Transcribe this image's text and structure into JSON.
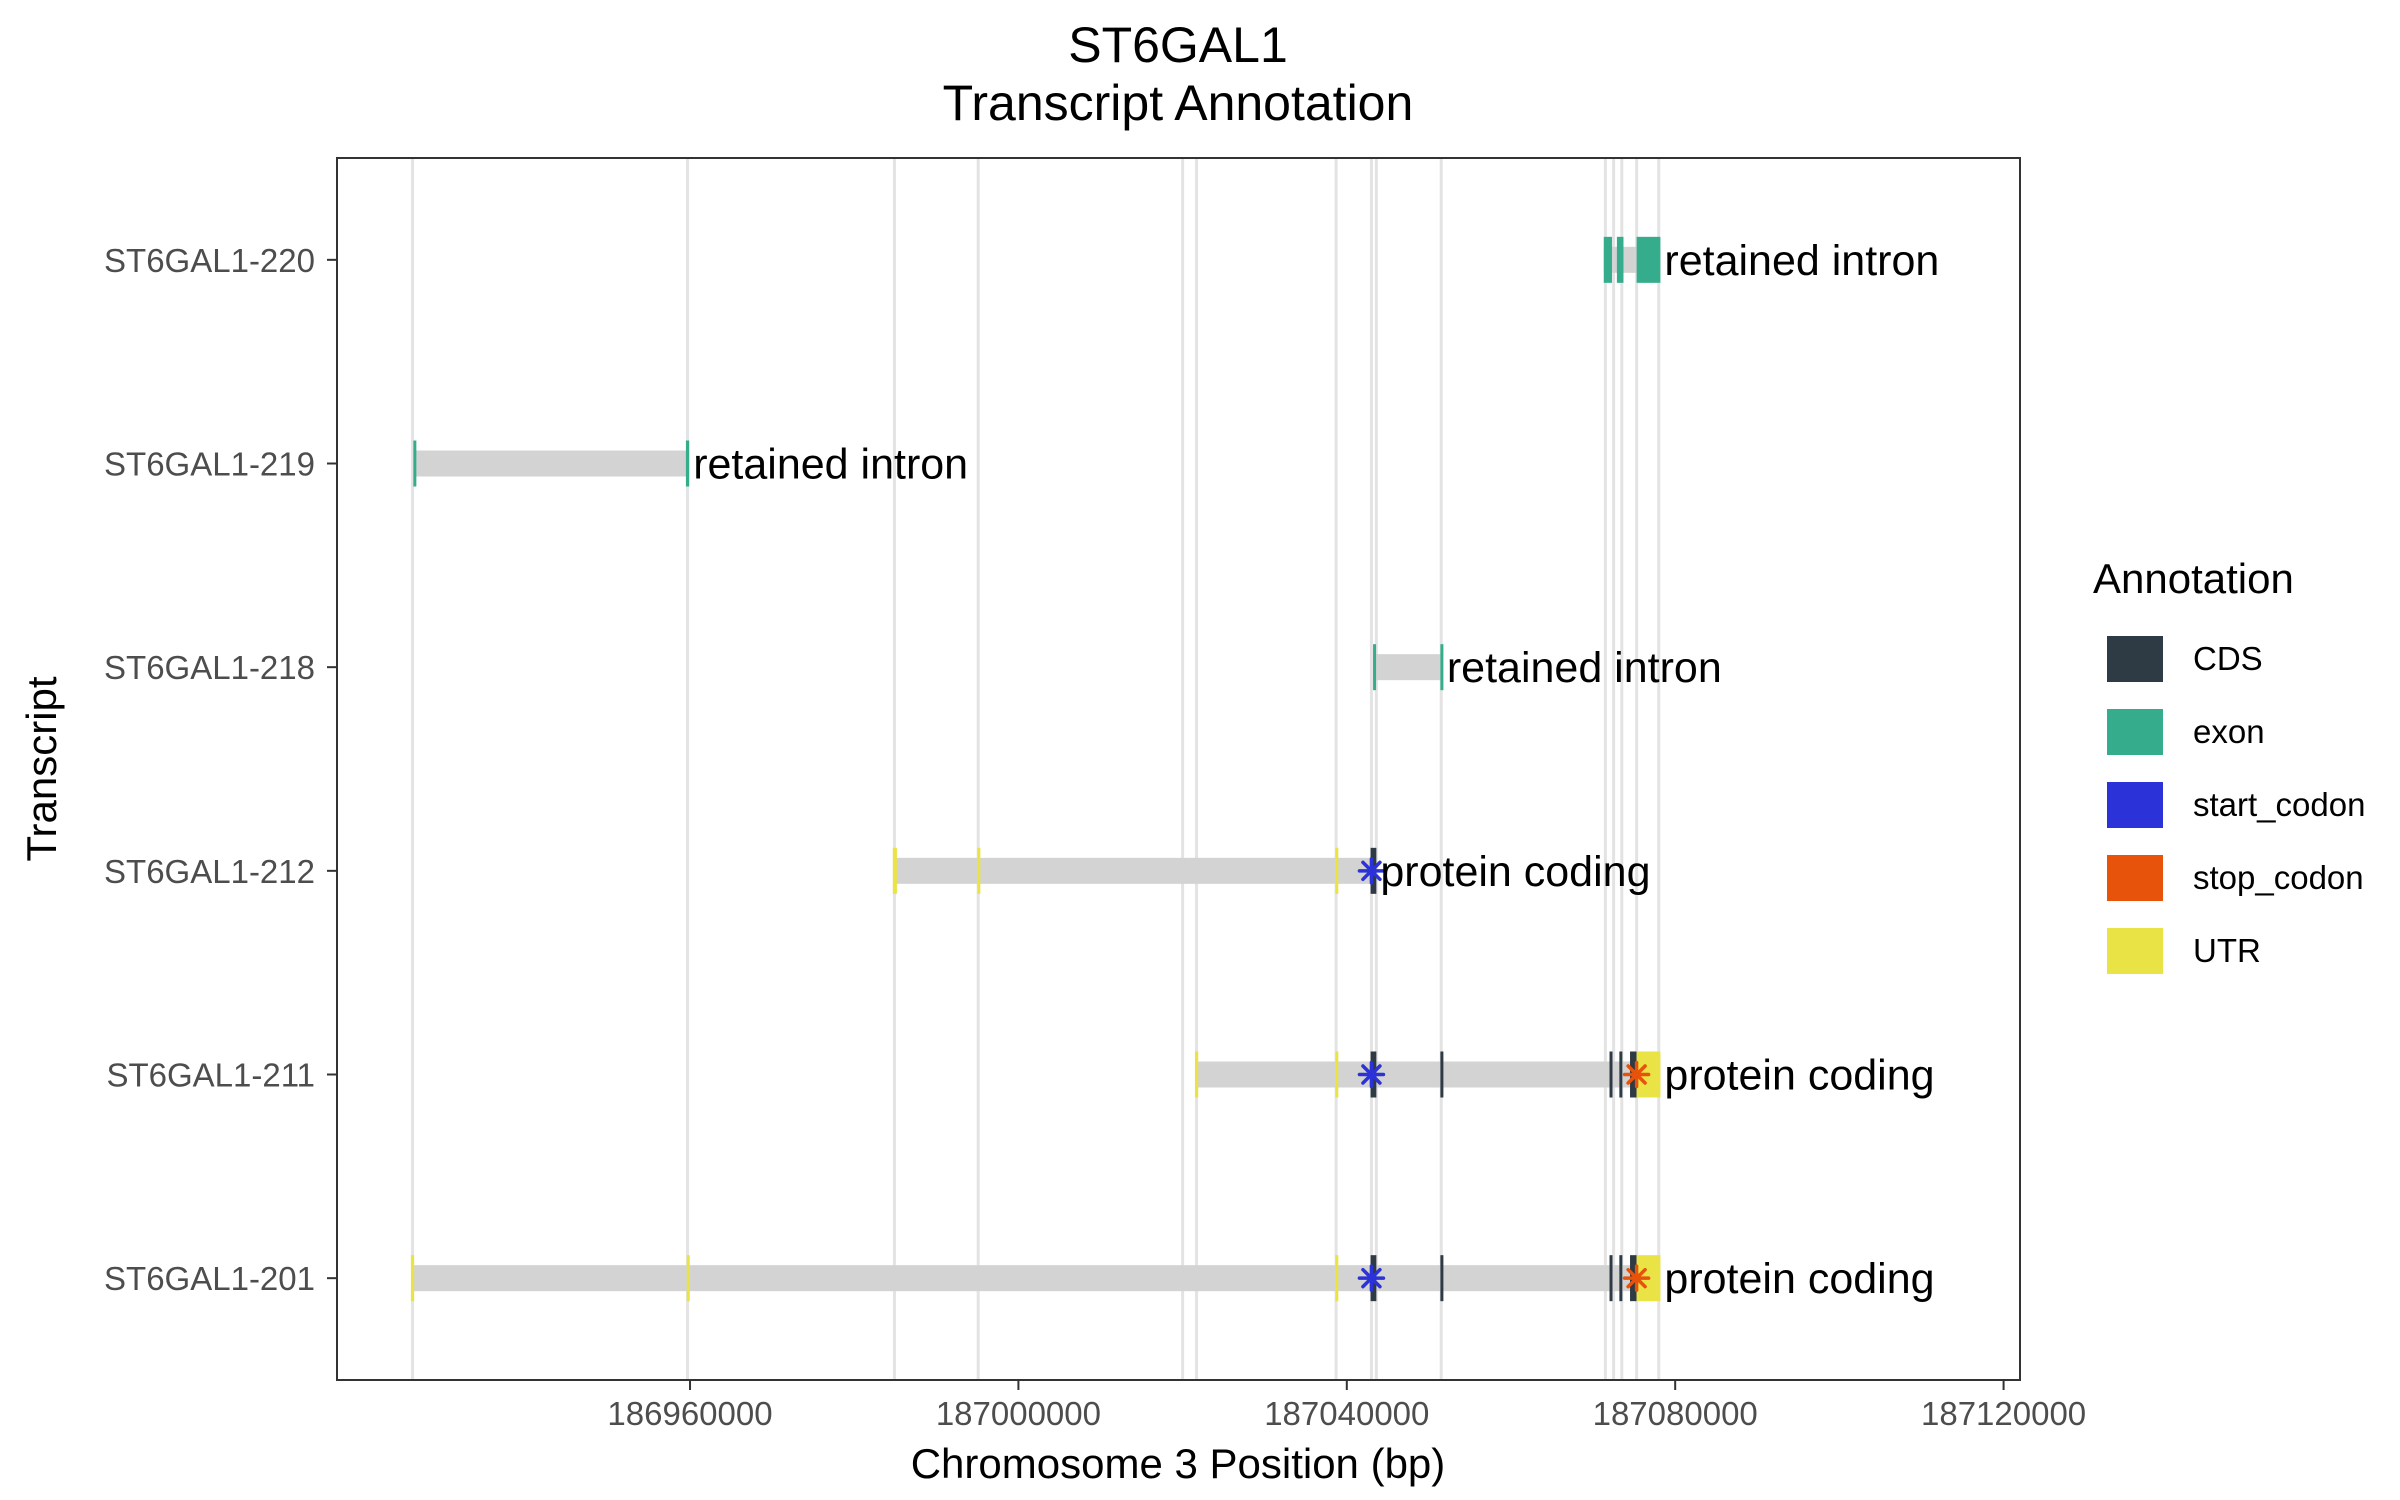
{
  "chart_data": {
    "type": "gene_track",
    "title": "ST6GAL1",
    "subtitle": "Transcript Annotation",
    "xlabel": "Chromosome 3 Position (bp)",
    "ylabel": "Transcript",
    "xlim": [
      186917000,
      187122000
    ],
    "x_ticks": [
      186960000,
      187000000,
      187040000,
      187080000,
      187120000
    ],
    "x_tick_labels": [
      "186960000",
      "187000000",
      "187040000",
      "187080000",
      "187120000"
    ],
    "grid": true,
    "legend": {
      "title": "Annotation",
      "placement": "right",
      "items": [
        {
          "label": "CDS",
          "color": "#2e3a44"
        },
        {
          "label": "exon",
          "color": "#35ac8c"
        },
        {
          "label": "start_codon",
          "color": "#2b32d8"
        },
        {
          "label": "stop_codon",
          "color": "#e8530c"
        },
        {
          "label": "UTR",
          "color": "#e9e345"
        }
      ]
    },
    "transcripts": [
      {
        "name": "ST6GAL1-201",
        "biotype_label": "protein coding",
        "start": 186926200,
        "end": 187078200,
        "features": [
          {
            "type": "UTR",
            "start": 186926000,
            "end": 186926400
          },
          {
            "type": "UTR",
            "start": 186959600,
            "end": 186959900
          },
          {
            "type": "UTR",
            "start": 187038600,
            "end": 187038900
          },
          {
            "type": "CDS",
            "start": 187042900,
            "end": 187043600
          },
          {
            "type": "CDS",
            "start": 187051400,
            "end": 187051700
          },
          {
            "type": "CDS",
            "start": 187072000,
            "end": 187072300
          },
          {
            "type": "CDS",
            "start": 187073200,
            "end": 187073500
          },
          {
            "type": "CDS",
            "start": 187074500,
            "end": 187075300
          },
          {
            "type": "UTR",
            "start": 187075300,
            "end": 187078200
          }
        ],
        "start_codon": 187043000,
        "stop_codon": 187075300
      },
      {
        "name": "ST6GAL1-211",
        "biotype_label": "protein coding",
        "start": 187021700,
        "end": 187078200,
        "features": [
          {
            "type": "UTR",
            "start": 187021500,
            "end": 187021900
          },
          {
            "type": "UTR",
            "start": 187038600,
            "end": 187038900
          },
          {
            "type": "CDS",
            "start": 187042900,
            "end": 187043600
          },
          {
            "type": "CDS",
            "start": 187051400,
            "end": 187051700
          },
          {
            "type": "CDS",
            "start": 187072000,
            "end": 187072300
          },
          {
            "type": "CDS",
            "start": 187073200,
            "end": 187073500
          },
          {
            "type": "CDS",
            "start": 187074500,
            "end": 187075300
          },
          {
            "type": "UTR",
            "start": 187075300,
            "end": 187078200
          }
        ],
        "start_codon": 187043000,
        "stop_codon": 187075300
      },
      {
        "name": "ST6GAL1-212",
        "biotype_label": "protein coding",
        "start": 186984900,
        "end": 187043600,
        "features": [
          {
            "type": "UTR",
            "start": 186984700,
            "end": 186985200
          },
          {
            "type": "UTR",
            "start": 186995000,
            "end": 186995300
          },
          {
            "type": "UTR",
            "start": 187038600,
            "end": 187038900
          },
          {
            "type": "CDS",
            "start": 187042900,
            "end": 187043600
          }
        ],
        "start_codon": 187043000,
        "stop_codon": null
      },
      {
        "name": "ST6GAL1-218",
        "biotype_label": "retained intron",
        "start": 187043200,
        "end": 187051700,
        "features": [
          {
            "type": "exon",
            "start": 187043200,
            "end": 187043500
          },
          {
            "type": "exon",
            "start": 187051400,
            "end": 187051700
          }
        ],
        "start_codon": null,
        "stop_codon": null
      },
      {
        "name": "ST6GAL1-219",
        "biotype_label": "retained intron",
        "start": 186926400,
        "end": 186959900,
        "features": [
          {
            "type": "exon",
            "start": 186926300,
            "end": 186926600
          },
          {
            "type": "exon",
            "start": 186959500,
            "end": 186959900
          }
        ],
        "start_codon": null,
        "stop_codon": null
      },
      {
        "name": "ST6GAL1-220",
        "biotype_label": "retained intron",
        "start": 187071300,
        "end": 187078200,
        "features": [
          {
            "type": "exon",
            "start": 187071300,
            "end": 187072300
          },
          {
            "type": "exon",
            "start": 187072900,
            "end": 187073700
          },
          {
            "type": "exon",
            "start": 187075300,
            "end": 187078200
          }
        ],
        "start_codon": null,
        "stop_codon": null
      }
    ],
    "feature_boundaries": [
      186926200,
      186959700,
      186984900,
      186995100,
      187020000,
      187021700,
      187038700,
      187043000,
      187043600,
      187051500,
      187071500,
      187072500,
      187073500,
      187075300,
      187078000
    ]
  }
}
